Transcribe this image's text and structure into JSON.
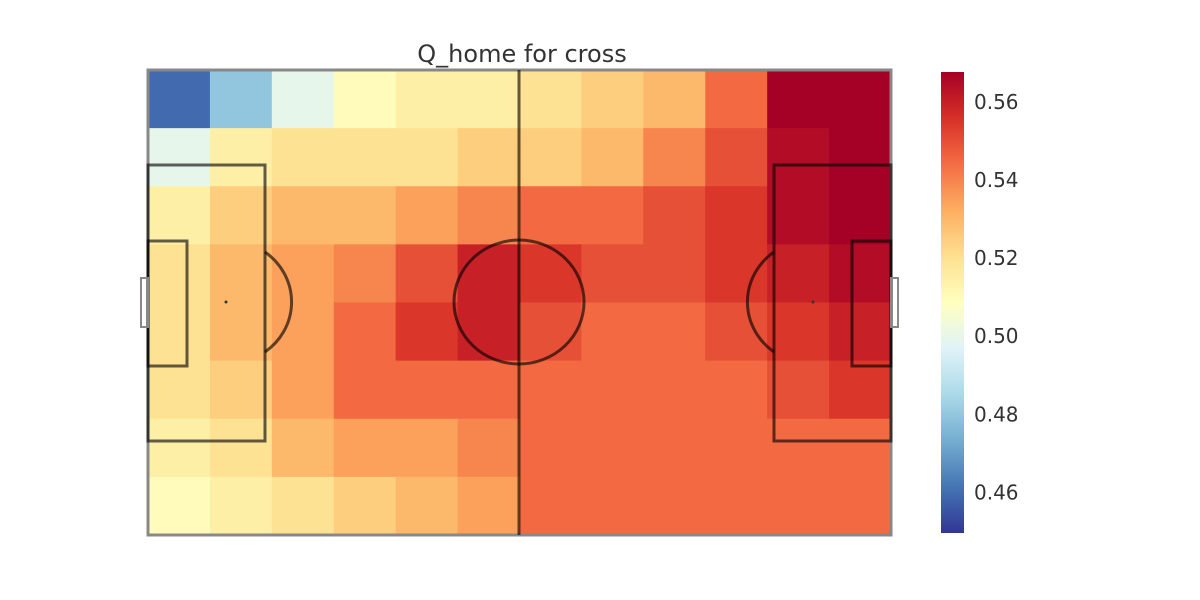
{
  "chart_data": {
    "type": "heatmap",
    "title": "Q_home for cross",
    "colormap": "RdYlBu_r",
    "z": [
      [
        0.46,
        0.48,
        0.5,
        0.51,
        0.515,
        0.515,
        0.52,
        0.525,
        0.53,
        0.545,
        0.568,
        0.568
      ],
      [
        0.5,
        0.515,
        0.52,
        0.52,
        0.52,
        0.525,
        0.525,
        0.53,
        0.54,
        0.55,
        0.565,
        0.568
      ],
      [
        0.515,
        0.525,
        0.53,
        0.53,
        0.535,
        0.54,
        0.545,
        0.545,
        0.55,
        0.555,
        0.565,
        0.568
      ],
      [
        0.52,
        0.53,
        0.535,
        0.54,
        0.55,
        0.56,
        0.555,
        0.55,
        0.55,
        0.555,
        0.56,
        0.565
      ],
      [
        0.52,
        0.53,
        0.535,
        0.545,
        0.555,
        0.56,
        0.55,
        0.545,
        0.545,
        0.55,
        0.555,
        0.56
      ],
      [
        0.52,
        0.525,
        0.535,
        0.545,
        0.545,
        0.545,
        0.545,
        0.545,
        0.545,
        0.545,
        0.55,
        0.555
      ],
      [
        0.515,
        0.52,
        0.53,
        0.535,
        0.535,
        0.54,
        0.545,
        0.545,
        0.545,
        0.545,
        0.545,
        0.545
      ],
      [
        0.51,
        0.515,
        0.52,
        0.525,
        0.53,
        0.535,
        0.545,
        0.545,
        0.545,
        0.545,
        0.545,
        0.545
      ]
    ],
    "clim": [
      0.45,
      0.568
    ],
    "cticks": [
      0.46,
      0.48,
      {
        "value": 0.5,
        "label": "0.50"
      },
      0.52,
      0.54,
      0.56
    ]
  }
}
